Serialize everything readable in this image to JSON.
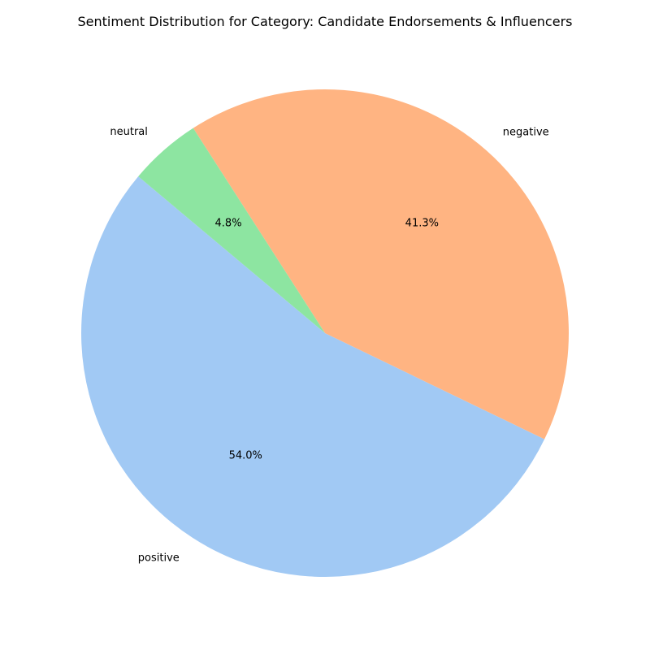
{
  "chart_data": {
    "type": "pie",
    "title": "Sentiment Distribution for Category: Candidate Endorsements & Influencers",
    "start_angle_deg": 140,
    "direction": "counterclockwise",
    "slices": [
      {
        "label": "positive",
        "value": 54.0,
        "pct_label": "54.0%",
        "color": "#a1c9f4"
      },
      {
        "label": "negative",
        "value": 41.3,
        "pct_label": "41.3%",
        "color": "#ffb482"
      },
      {
        "label": "neutral",
        "value": 4.8,
        "pct_label": "4.8%",
        "color": "#8de5a1"
      }
    ]
  }
}
